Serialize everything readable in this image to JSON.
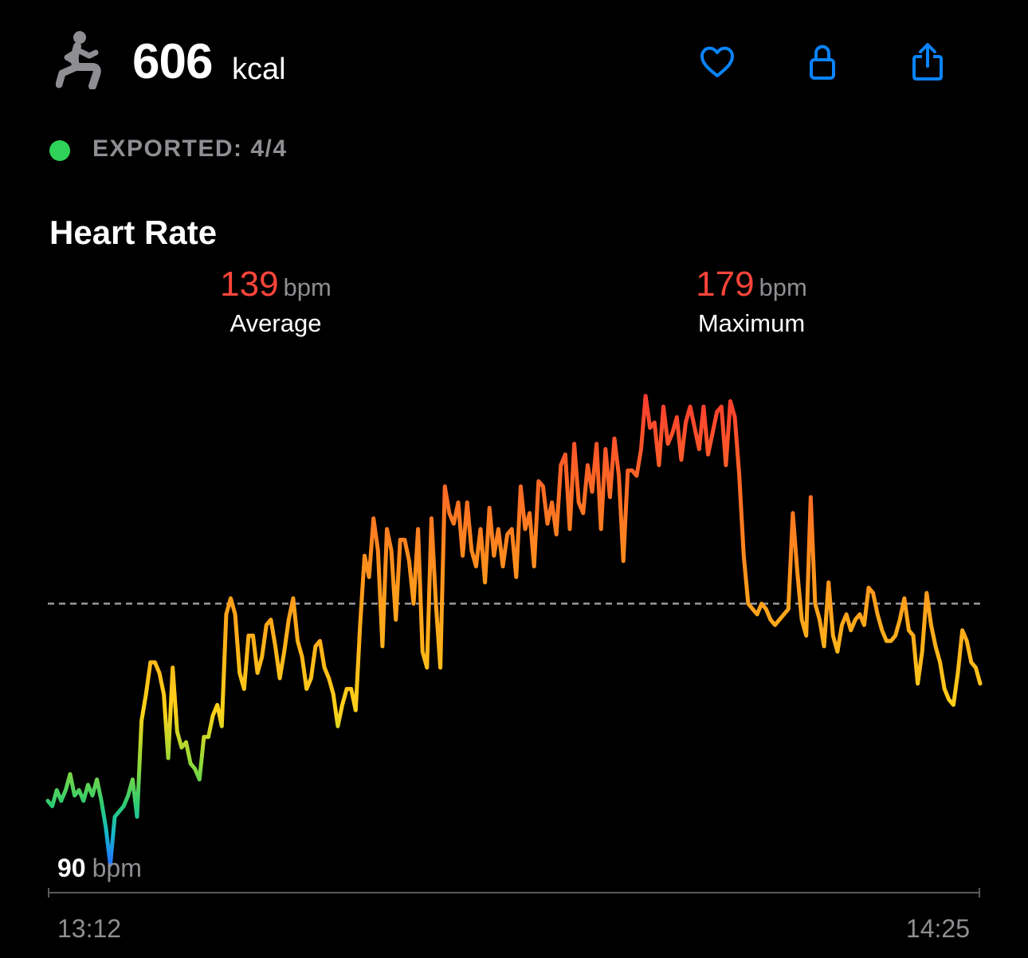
{
  "header": {
    "activity_icon": "strength-training-figure-icon",
    "calories_value": "606",
    "calories_unit": "kcal",
    "toolbar": [
      {
        "name": "favorite",
        "icon": "heart-icon"
      },
      {
        "name": "lock",
        "icon": "lock-icon"
      },
      {
        "name": "share",
        "icon": "share-icon"
      }
    ]
  },
  "export_status": {
    "text": "EXPORTED: 4/4",
    "dot_color": "#30d158"
  },
  "heart_rate": {
    "title": "Heart Rate",
    "average": {
      "value": "139",
      "unit": "bpm",
      "label": "Average"
    },
    "maximum": {
      "value": "179",
      "unit": "bpm",
      "label": "Maximum"
    },
    "min_label": {
      "value": "90",
      "unit": "bpm"
    },
    "x_start": "13:12",
    "x_end": "14:25"
  },
  "colors": {
    "background": "#000000",
    "accent_blue": "#0a84ff",
    "stat_red": "#ff453a",
    "secondary_text": "#8e8e93",
    "dashed_line": "#9a9a9e",
    "axis_line": "#5a5a5e"
  },
  "chart_data": {
    "type": "line",
    "title": "Heart Rate",
    "xlabel": "",
    "ylabel": "",
    "x_range": [
      "13:12",
      "14:25"
    ],
    "ylim": [
      90,
      179
    ],
    "reference_line": {
      "value": 139,
      "style": "dashed",
      "label": "Average"
    },
    "grid": false,
    "legend": "none",
    "series": [
      {
        "values": [
          102,
          101,
          104,
          102,
          104,
          107,
          103,
          104,
          102,
          105,
          103,
          106,
          102,
          97,
          90,
          99,
          100,
          101,
          103,
          106,
          99,
          117,
          122,
          128,
          128,
          126,
          122,
          110,
          127,
          115,
          112,
          113,
          109,
          108,
          106,
          114,
          114,
          118,
          120,
          116,
          137,
          140,
          137,
          126,
          123,
          133,
          133,
          126,
          129,
          135,
          136,
          131,
          125,
          130,
          136,
          140,
          132,
          129,
          123,
          125,
          131,
          132,
          127,
          125,
          122,
          116,
          120,
          123,
          123,
          119,
          135,
          148,
          144,
          155,
          149,
          131,
          153,
          149,
          136,
          151,
          151,
          147,
          139,
          153,
          130,
          127,
          155,
          139,
          127,
          161,
          156,
          154,
          158,
          148,
          158,
          149,
          146,
          153,
          143,
          157,
          148,
          153,
          146,
          152,
          153,
          144,
          161,
          153,
          156,
          146,
          162,
          161,
          154,
          158,
          152,
          165,
          167,
          153,
          169,
          158,
          156,
          165,
          160,
          169,
          153,
          168,
          159,
          170,
          163,
          147,
          164,
          164,
          163,
          168,
          178,
          172,
          173,
          165,
          176,
          169,
          171,
          174,
          166,
          173,
          176,
          172,
          168,
          176,
          167,
          171,
          175,
          176,
          165,
          177,
          174,
          163,
          148,
          139,
          138,
          137,
          139,
          138,
          136,
          135,
          136,
          137,
          138,
          156,
          145,
          136,
          133,
          159,
          139,
          136,
          131,
          143,
          133,
          130,
          135,
          137,
          134,
          136,
          137,
          135,
          142,
          141,
          137,
          134,
          132,
          132,
          133,
          136,
          140,
          134,
          133,
          124,
          130,
          141,
          135,
          131,
          128,
          123,
          121,
          120,
          126,
          134,
          132,
          128,
          127,
          124
        ]
      }
    ]
  }
}
